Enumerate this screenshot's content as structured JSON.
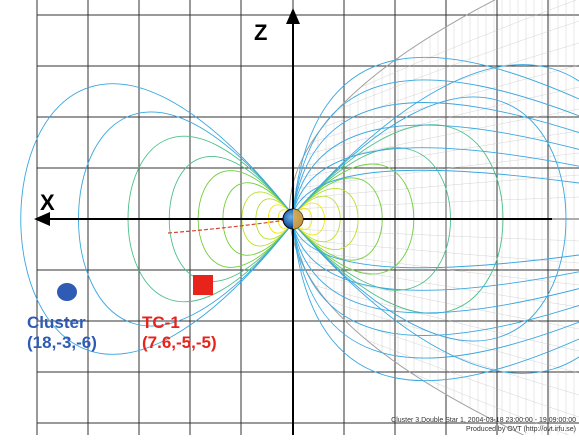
{
  "axes": {
    "x_label": "X",
    "z_label": "Z"
  },
  "objects": {
    "cluster": {
      "name": "Cluster",
      "coords": "(18,-3,-6)",
      "color": "#2f5bb5"
    },
    "tc1": {
      "name": "TC-1",
      "coords": "(7.6,-5,-5)",
      "color": "#e8231c"
    }
  },
  "credit": {
    "line1": "Cluster 3,Double Star 1, 2004-03-18 23:00:00 - 19 09:00:00",
    "line2": "Produced by OVT (http://ovt.irfu.se)"
  },
  "colors": {
    "grid": "#333333",
    "field_inner": "#f5e600",
    "field_mid": "#6fcf3a",
    "field_outer": "#39a7e0",
    "magnetopause_mesh": "#b8b8b8",
    "earth": "#2a6db5"
  }
}
